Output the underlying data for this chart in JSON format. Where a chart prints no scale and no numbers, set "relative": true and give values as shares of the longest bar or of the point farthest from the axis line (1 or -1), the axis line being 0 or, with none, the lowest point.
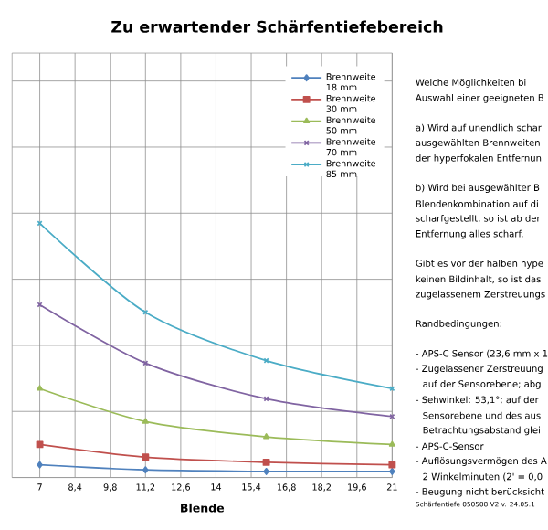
{
  "chart_data": {
    "type": "line",
    "title": "Zu erwartender Schärfentiefebereich",
    "xlabel": "Blende",
    "relative": true,
    "grid": true,
    "legend": "top right",
    "tick_labels": "x",
    "line_style": "solid",
    "xlim": [
      5.9,
      21
    ],
    "xticks": [
      7,
      {
        "value": 8.4,
        "label": "8,4"
      },
      {
        "value": 9.8,
        "label": "9,8"
      },
      {
        "value": 11.2,
        "label": "11,2"
      },
      {
        "value": 12.6,
        "label": "12,6"
      },
      14,
      {
        "value": 15.4,
        "label": "15,4"
      },
      {
        "value": 16.8,
        "label": "16,8"
      },
      {
        "value": 18.2,
        "label": "18,2"
      },
      {
        "value": 19.6,
        "label": "19,6"
      },
      21
    ],
    "x": [
      7,
      11.2,
      16,
      21
    ],
    "series": [
      {
        "name": "Brennweite 18 mm",
        "color": "#4f81bd",
        "marker": "diamond",
        "values": [
          0.05,
          0.03,
          0.024,
          0.024
        ]
      },
      {
        "name": "Brennweite 30 mm",
        "color": "#c0504d",
        "marker": "square",
        "values": [
          0.13,
          0.08,
          0.06,
          0.05
        ]
      },
      {
        "name": "Brennweite 50 mm",
        "color": "#9bbb59",
        "marker": "triangle",
        "values": [
          0.35,
          0.22,
          0.16,
          0.13
        ]
      },
      {
        "name": "Brennweite 70 mm",
        "color": "#8064a2",
        "marker": "cross",
        "values": [
          0.68,
          0.45,
          0.31,
          0.24
        ]
      },
      {
        "name": "Brennweite 85 mm",
        "color": "#4bacc6",
        "marker": "cross",
        "values": [
          1,
          0.65,
          0.46,
          0.35
        ]
      }
    ],
    "annotations": [
      "Welche Möglichkeiten bi",
      "Auswahl einer geeigneten B",
      "a) Wird auf unendlich schar",
      "ausgewählten Brennweiten",
      "der hyperfokalen Entfernun",
      "b) Wird bei ausgewählter B",
      "Blendenkombination auf di",
      "scharfgestellt, so ist ab der",
      "Entfernung alles scharf.",
      "Gibt es vor der halben hype",
      "keinen Bildinhalt, so ist das",
      "zugelassenem Zerstreuungs",
      "Randbedingungen:",
      "- APS-C Sensor (23,6 mm x 1",
      "- Zugelassener Zerstreuung",
      "auf der Sensorebene; abg",
      "- Sehwinkel: 53,1°; auf der",
      "Sensorebene und des aus",
      "Betrachtungsabstand glei",
      "- APS-C-Sensor",
      "- Auflösungsvermögen des A",
      "2 Winkelminuten (2' = 0,0",
      "- Beugung nicht berücksicht",
      "Schärfentiefe 050508 V2 v. 24.05.1"
    ]
  }
}
